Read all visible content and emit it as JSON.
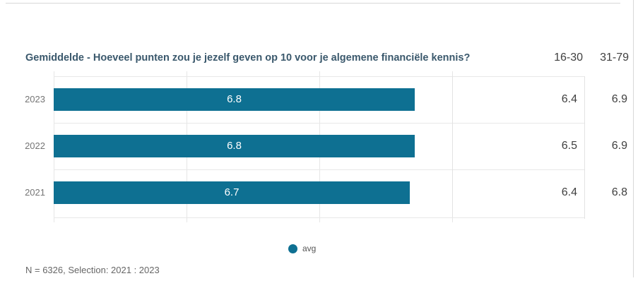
{
  "page": {
    "title": "Gemiddelde - Hoeveel punten zou je jezelf geven op 10 voor je algemene financiële kennis?",
    "footer": "N = 6326, Selection: 2021 : 2023"
  },
  "table": {
    "age_group_headers": [
      "16-30",
      "31-79"
    ]
  },
  "chart_data": {
    "type": "bar",
    "orientation": "horizontal",
    "title": "Gemiddelde - Hoeveel punten zou je jezelf geven op 10 voor je algemene financiële kennis?",
    "categories": [
      "2023",
      "2022",
      "2021"
    ],
    "series": [
      {
        "name": "avg",
        "values": [
          6.8,
          6.8,
          6.7
        ]
      },
      {
        "name": "16-30",
        "values": [
          6.4,
          6.5,
          6.4
        ]
      },
      {
        "name": "31-79",
        "values": [
          6.9,
          6.9,
          6.8
        ]
      }
    ],
    "xlim": [
      0,
      7.5
    ],
    "grid": true,
    "gridline_ticks": [
      0,
      2.5,
      5,
      7.5
    ],
    "value_labels": "inside-center",
    "legend": {
      "entries": [
        "avg"
      ],
      "position": "bottom"
    }
  },
  "rows": [
    {
      "year": "2023",
      "avg": "6.8",
      "age_16_30": "6.4",
      "age_31_79": "6.9"
    },
    {
      "year": "2022",
      "avg": "6.8",
      "age_16_30": "6.5",
      "age_31_79": "6.9"
    },
    {
      "year": "2021",
      "avg": "6.7",
      "age_16_30": "6.4",
      "age_31_79": "6.8"
    }
  ],
  "legend": {
    "label": "avg",
    "dot_color": "#0e7092"
  },
  "colors": {
    "bar": "#0e7092",
    "title_text": "#3a586c",
    "category_text": "#757575",
    "value_text": "#3f3f3f",
    "grid_line": "#e6e6e6",
    "bar_label_text": "#ffffff",
    "footer_text": "#666666"
  }
}
